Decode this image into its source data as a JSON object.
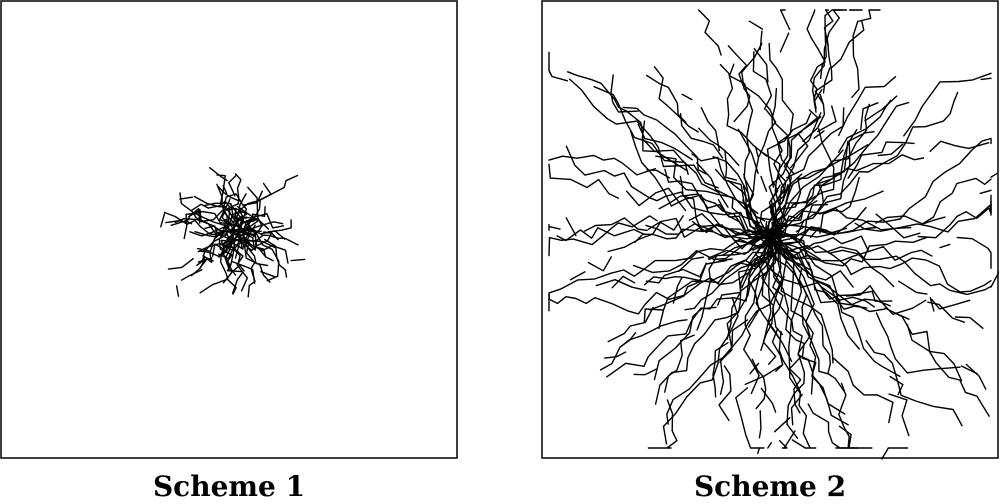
{
  "panels": [
    {
      "caption": "Scheme 1",
      "spread": "compact",
      "color": "#000000"
    },
    {
      "caption": "Scheme 2",
      "spread": "wide",
      "color": "#000000"
    }
  ]
}
